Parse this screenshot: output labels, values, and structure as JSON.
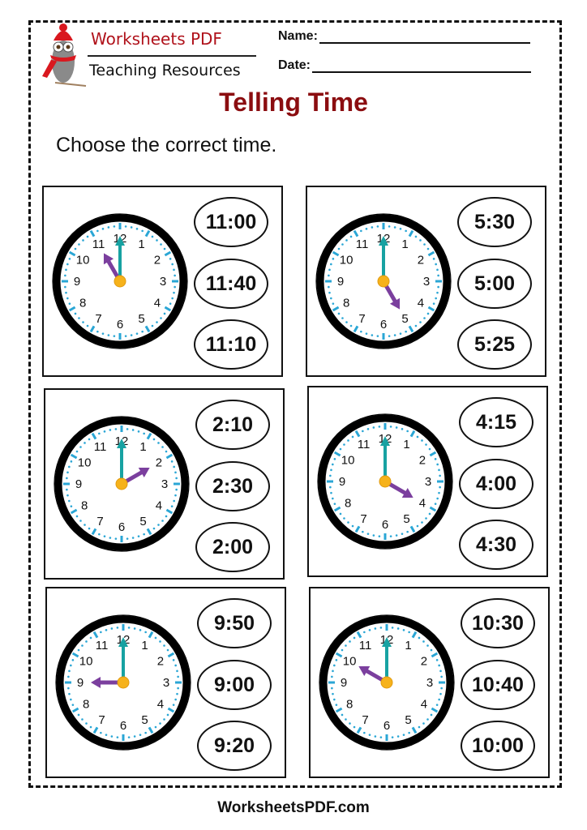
{
  "header": {
    "brand_line1": "Worksheets PDF",
    "brand_line2": "Teaching Resources",
    "name_label": "Name:",
    "date_label": "Date:"
  },
  "title": "Telling Time",
  "instruction": "Choose the correct time.",
  "colors": {
    "title": "#8b0d10",
    "brand": "#b0121b",
    "tick": "#2aa6d5",
    "minute_hand": "#17a2a2",
    "hour_hand": "#7b3f9e",
    "center": "#f6b21b"
  },
  "exercises": [
    {
      "clock_time": "11:00",
      "options": [
        "11:00",
        "11:40",
        "11:10"
      ]
    },
    {
      "clock_time": "5:00",
      "options": [
        "5:30",
        "5:00",
        "5:25"
      ]
    },
    {
      "clock_time": "2:00",
      "options": [
        "2:10",
        "2:30",
        "2:00"
      ]
    },
    {
      "clock_time": "4:00",
      "options": [
        "4:15",
        "4:00",
        "4:30"
      ]
    },
    {
      "clock_time": "9:00",
      "options": [
        "9:50",
        "9:00",
        "9:20"
      ]
    },
    {
      "clock_time": "10:00",
      "options": [
        "10:30",
        "10:40",
        "10:00"
      ]
    }
  ],
  "footer": "WorksheetsPDF.com"
}
